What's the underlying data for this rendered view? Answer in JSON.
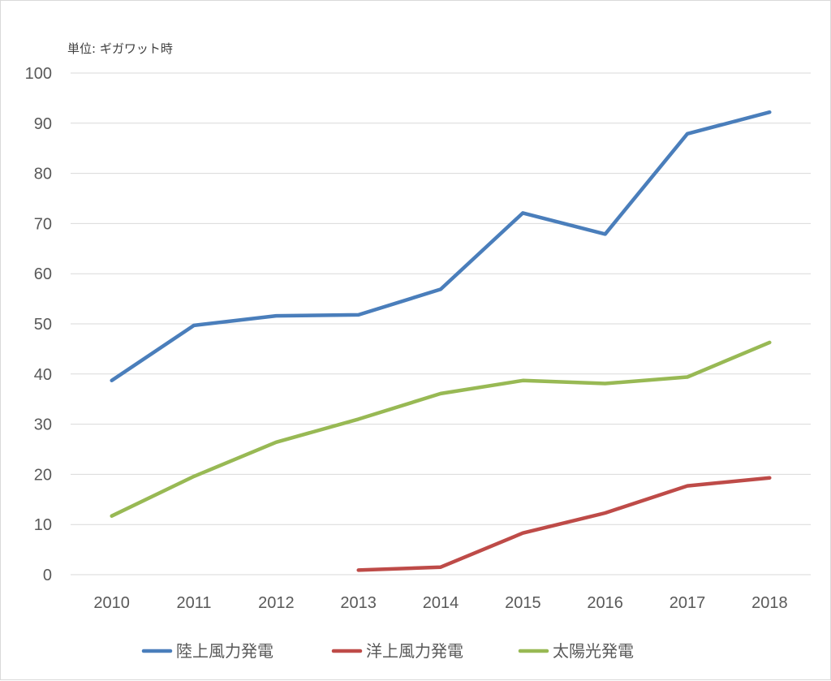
{
  "chart_data": {
    "type": "line",
    "unit_label": "単位: ギガワット時",
    "categories": [
      "2010",
      "2011",
      "2012",
      "2013",
      "2014",
      "2015",
      "2016",
      "2017",
      "2018"
    ],
    "ylim": [
      0,
      100
    ],
    "yticks": [
      0,
      10,
      20,
      30,
      40,
      50,
      60,
      70,
      80,
      90,
      100
    ],
    "grid": true,
    "legend_position": "bottom",
    "series": [
      {
        "name": "陸上風力発電",
        "color": "#4a7ebb",
        "values": [
          38.7,
          49.7,
          51.6,
          51.8,
          56.9,
          72.1,
          67.9,
          87.9,
          92.2
        ]
      },
      {
        "name": "洋上風力発電",
        "color": "#be4b48",
        "values": [
          null,
          null,
          null,
          0.9,
          1.5,
          8.3,
          12.3,
          17.7,
          19.3
        ]
      },
      {
        "name": "太陽光発電",
        "color": "#98b954",
        "values": [
          11.7,
          19.6,
          26.4,
          31.0,
          36.1,
          38.7,
          38.1,
          39.4,
          46.3
        ]
      }
    ]
  }
}
